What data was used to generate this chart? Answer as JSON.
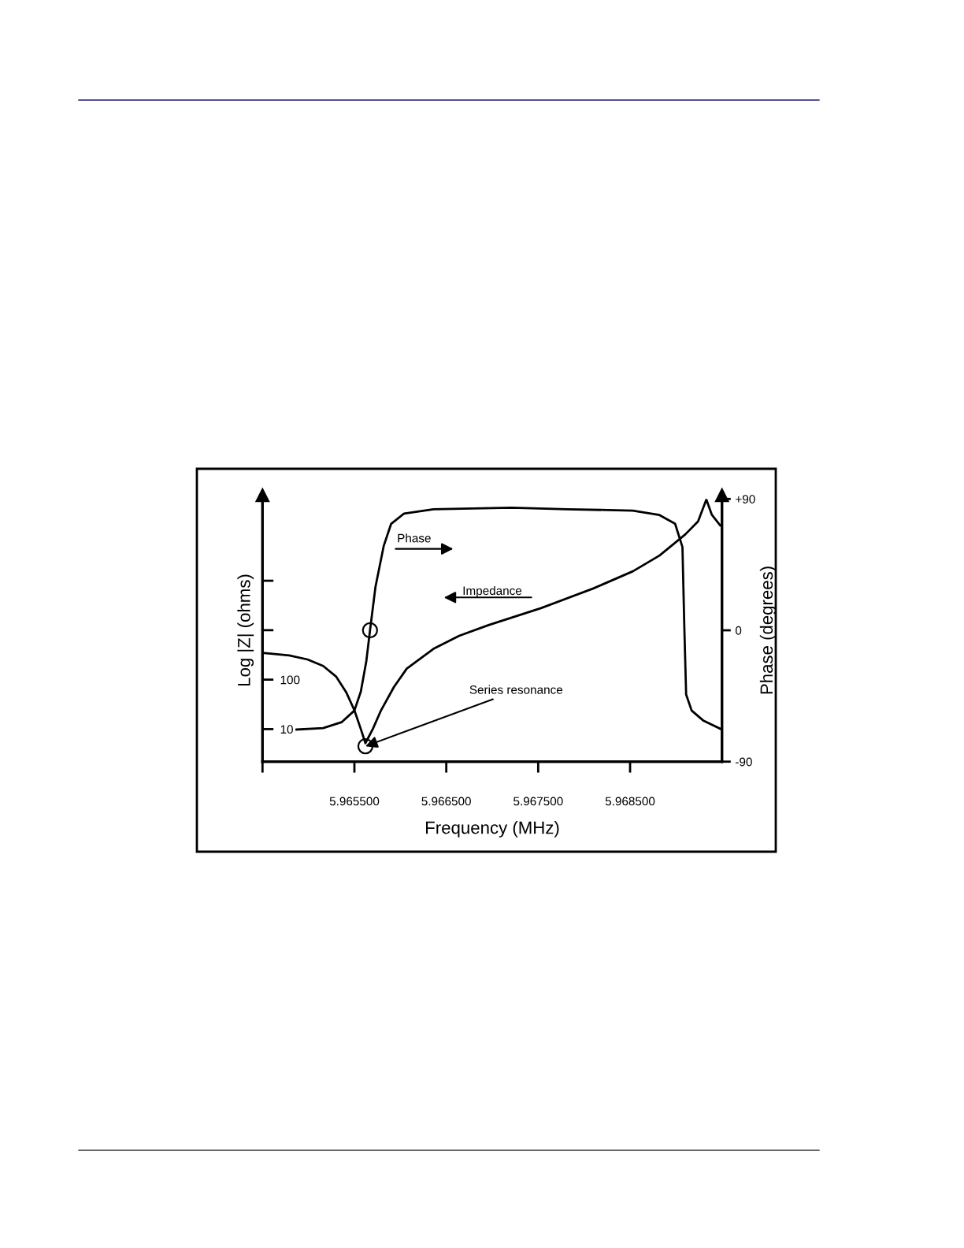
{
  "chart_data": {
    "type": "line",
    "xlabel": "Frequency (MHz)",
    "ylabel": "Log |Z| (ohms)",
    "y2label": "Phase (degrees)",
    "log": "y",
    "grid": false,
    "legend": false,
    "line_style": "solid",
    "marker": "none",
    "xlim": [
      5.9645,
      5.9695
    ],
    "xticks": [
      {
        "value": 5.9645,
        "label": null
      },
      {
        "value": 5.9655,
        "label": "5.965500"
      },
      {
        "value": 5.9665,
        "label": "5.966500"
      },
      {
        "value": 5.9675,
        "label": "5.967500"
      },
      {
        "value": 5.9685,
        "label": "5.968500"
      }
    ],
    "ylim": [
      2.2,
      450000
    ],
    "yticks": [
      10,
      100,
      {
        "value": 1000,
        "label": null
      },
      {
        "value": 10000,
        "label": null
      }
    ],
    "y2lim": [
      -90,
      90
    ],
    "y2ticks": [
      -90,
      0,
      {
        "value": 90,
        "label": "+90"
      }
    ],
    "series": [
      {
        "axis": "y",
        "color": "#000000",
        "x": [
          5.9645,
          5.96479,
          5.96499,
          5.96516,
          5.9653,
          5.96541,
          5.9655,
          5.96557,
          5.96562,
          5.9657,
          5.96579,
          5.96593,
          5.96607,
          5.96636,
          5.96664,
          5.96696,
          5.96753,
          5.9681,
          5.96853,
          5.96882,
          5.9691,
          5.96924,
          5.96933,
          5.96939,
          5.96948
        ],
        "values": [
          348,
          308,
          256,
          189,
          116,
          56,
          24,
          10,
          5.2,
          10,
          24,
          71,
          167,
          419,
          771,
          1270,
          2790,
          6980,
          15500,
          32300,
          86100,
          158000,
          440000,
          215000,
          132000
        ]
      },
      {
        "axis": "y2",
        "color": "#000000",
        "x": [
          5.96487,
          5.96516,
          5.96536,
          5.9655,
          5.96557,
          5.96563,
          5.96567,
          5.96573,
          5.96582,
          5.9659,
          5.96604,
          5.96636,
          5.96721,
          5.96781,
          5.96853,
          5.96882,
          5.96899,
          5.96907,
          5.96909,
          5.96911,
          5.96917,
          5.9693,
          5.9695
        ],
        "values": [
          -68,
          -67,
          -63,
          -55,
          -42,
          -21,
          0,
          30,
          58,
          73,
          80,
          83,
          84,
          83,
          82,
          79,
          73,
          57,
          3,
          -44,
          -55,
          -62,
          -68
        ]
      },
      {
        "type": "scatter",
        "axis": "y",
        "marker": "circle",
        "color": "#000000",
        "x": [
          5.96562
        ],
        "values": [
          4.5
        ]
      },
      {
        "type": "scatter",
        "axis": "y2",
        "marker": "circle",
        "color": "#000000",
        "x": [
          5.96567
        ],
        "values": [
          0
        ]
      }
    ],
    "annotations": [
      "Phase",
      "Impedance",
      {
        "text": "Series resonance",
        "x": 5.96562,
        "y": 4.5
      }
    ]
  }
}
